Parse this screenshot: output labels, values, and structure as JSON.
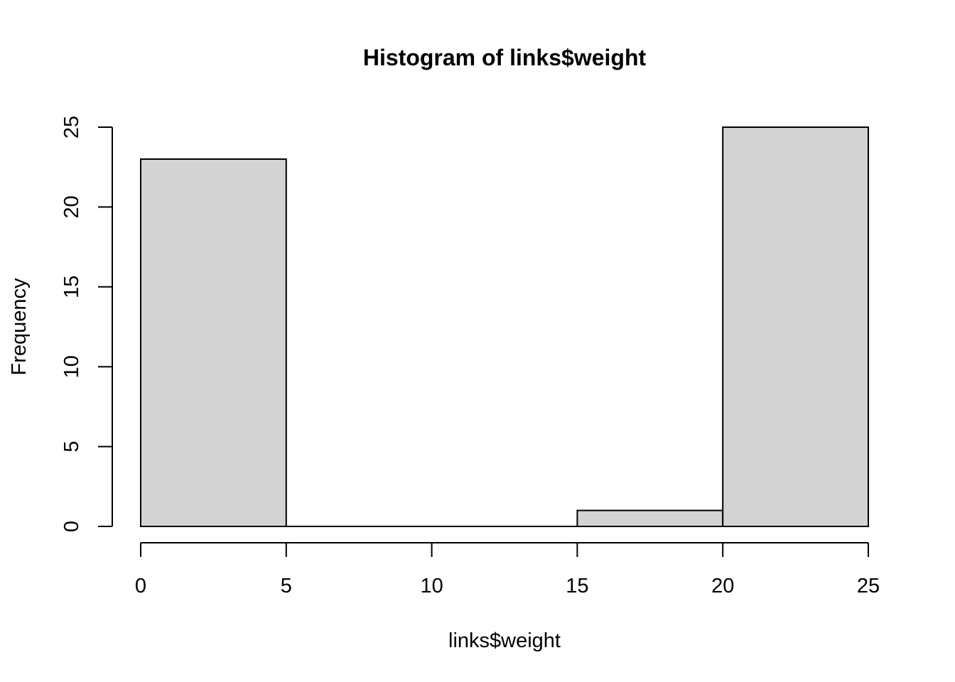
{
  "chart_data": {
    "type": "bar",
    "title": "Histogram of links$weight",
    "xlabel": "links$weight",
    "ylabel": "Frequency",
    "bins": [
      {
        "from": 0,
        "to": 5,
        "count": 23
      },
      {
        "from": 5,
        "to": 10,
        "count": 0
      },
      {
        "from": 10,
        "to": 15,
        "count": 0
      },
      {
        "from": 15,
        "to": 20,
        "count": 1
      },
      {
        "from": 20,
        "to": 25,
        "count": 25
      }
    ],
    "xlim": [
      0,
      25
    ],
    "ylim": [
      0,
      25
    ],
    "x_ticks": [
      0,
      5,
      10,
      15,
      20,
      25
    ],
    "y_ticks": [
      0,
      5,
      10,
      15,
      20,
      25
    ],
    "grid": false,
    "bar_fill": "#d3d3d3",
    "bar_stroke": "#000000"
  }
}
